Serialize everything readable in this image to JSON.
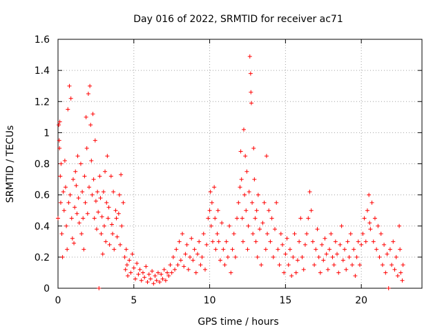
{
  "chart_data": {
    "type": "scatter",
    "title": "Day 016 of 2022, SRMTID for receiver ac71",
    "xlabel": "GPS time / hours",
    "ylabel": "SRMTID / TECUs",
    "xlim": [
      0,
      24
    ],
    "ylim": [
      0,
      1.6
    ],
    "grid": true,
    "marker": "+",
    "color": "#ff0000",
    "xticks": [
      {
        "value": 0,
        "label": "0"
      },
      {
        "value": 5,
        "label": "5"
      },
      {
        "value": 10,
        "label": "10"
      },
      {
        "value": 15,
        "label": "15"
      },
      {
        "value": 20,
        "label": "20"
      }
    ],
    "yticks": [
      {
        "value": 0,
        "label": "0"
      },
      {
        "value": 0.2,
        "label": "0.2"
      },
      {
        "value": 0.4,
        "label": "0.4"
      },
      {
        "value": 0.6,
        "label": "0.6"
      },
      {
        "value": 0.8,
        "label": "0.8"
      },
      {
        "value": 1.0,
        "label": "1"
      },
      {
        "value": 1.2,
        "label": "1.2"
      },
      {
        "value": 1.4,
        "label": "1.4"
      },
      {
        "value": 1.6,
        "label": "1.6"
      }
    ],
    "series": [
      {
        "name": "SRMTID",
        "points": [
          [
            0.0,
            0.45
          ],
          [
            0.05,
            1.05
          ],
          [
            0.08,
            0.95
          ],
          [
            0.1,
            0.9
          ],
          [
            0.12,
            1.07
          ],
          [
            0.15,
            0.72
          ],
          [
            0.18,
            0.55
          ],
          [
            0.2,
            0.8
          ],
          [
            0.25,
            0.35
          ],
          [
            0.3,
            0.2
          ],
          [
            0.35,
            0.62
          ],
          [
            0.4,
            0.5
          ],
          [
            0.45,
            0.82
          ],
          [
            0.5,
            0.65
          ],
          [
            0.55,
            0.4
          ],
          [
            0.6,
            0.25
          ],
          [
            0.65,
            1.15
          ],
          [
            0.7,
            0.55
          ],
          [
            0.75,
            1.3
          ],
          [
            0.8,
            0.6
          ],
          [
            0.85,
            1.22
          ],
          [
            0.9,
            0.45
          ],
          [
            0.95,
            0.32
          ],
          [
            1.0,
            0.7
          ],
          [
            1.05,
            0.29
          ],
          [
            1.1,
            0.52
          ],
          [
            1.15,
            0.75
          ],
          [
            1.2,
            0.66
          ],
          [
            1.25,
            0.48
          ],
          [
            1.3,
            0.85
          ],
          [
            1.35,
            0.58
          ],
          [
            1.4,
            0.42
          ],
          [
            1.5,
            0.8
          ],
          [
            1.55,
            0.35
          ],
          [
            1.6,
            0.62
          ],
          [
            1.65,
            0.45
          ],
          [
            1.7,
            0.25
          ],
          [
            1.75,
            0.72
          ],
          [
            1.8,
            0.55
          ],
          [
            1.85,
            1.1
          ],
          [
            1.9,
            0.9
          ],
          [
            1.95,
            0.48
          ],
          [
            2.0,
            1.25
          ],
          [
            2.05,
            0.65
          ],
          [
            2.1,
            1.3
          ],
          [
            2.15,
            1.05
          ],
          [
            2.2,
            0.82
          ],
          [
            2.25,
            0.6
          ],
          [
            2.3,
            1.12
          ],
          [
            2.35,
            0.7
          ],
          [
            2.4,
            0.45
          ],
          [
            2.45,
            0.95
          ],
          [
            2.5,
            0.56
          ],
          [
            2.55,
            0.38
          ],
          [
            2.6,
            0.62
          ],
          [
            2.65,
            0.49
          ],
          [
            2.7,
            0.0
          ],
          [
            2.75,
            0.72
          ],
          [
            2.8,
            0.58
          ],
          [
            2.85,
            0.35
          ],
          [
            2.9,
            0.46
          ],
          [
            2.95,
            0.22
          ],
          [
            3.0,
            0.62
          ],
          [
            3.05,
            0.4
          ],
          [
            3.1,
            0.75
          ],
          [
            3.15,
            0.3
          ],
          [
            3.2,
            0.55
          ],
          [
            3.25,
            0.85
          ],
          [
            3.3,
            0.45
          ],
          [
            3.35,
            0.52
          ],
          [
            3.4,
            0.28
          ],
          [
            3.5,
            0.72
          ],
          [
            3.55,
            0.41
          ],
          [
            3.6,
            0.35
          ],
          [
            3.65,
            0.62
          ],
          [
            3.7,
            0.25
          ],
          [
            3.8,
            0.5
          ],
          [
            3.85,
            0.45
          ],
          [
            3.9,
            0.33
          ],
          [
            4.0,
            0.48
          ],
          [
            4.05,
            0.6
          ],
          [
            4.1,
            0.28
          ],
          [
            4.15,
            0.73
          ],
          [
            4.2,
            0.4
          ],
          [
            4.3,
            0.55
          ],
          [
            4.4,
            0.2
          ],
          [
            4.45,
            0.12
          ],
          [
            4.5,
            0.25
          ],
          [
            4.55,
            0.15
          ],
          [
            4.6,
            0.08
          ],
          [
            4.7,
            0.18
          ],
          [
            4.8,
            0.1
          ],
          [
            4.9,
            0.22
          ],
          [
            5.0,
            0.13
          ],
          [
            5.1,
            0.06
          ],
          [
            5.2,
            0.16
          ],
          [
            5.3,
            0.09
          ],
          [
            5.4,
            0.12
          ],
          [
            5.5,
            0.05
          ],
          [
            5.6,
            0.1
          ],
          [
            5.7,
            0.07
          ],
          [
            5.8,
            0.14
          ],
          [
            5.9,
            0.04
          ],
          [
            6.0,
            0.09
          ],
          [
            6.1,
            0.06
          ],
          [
            6.2,
            0.11
          ],
          [
            6.3,
            0.03
          ],
          [
            6.4,
            0.08
          ],
          [
            6.5,
            0.05
          ],
          [
            6.6,
            0.1
          ],
          [
            6.7,
            0.04
          ],
          [
            6.8,
            0.09
          ],
          [
            6.9,
            0.06
          ],
          [
            7.0,
            0.12
          ],
          [
            7.1,
            0.05
          ],
          [
            7.2,
            0.1
          ],
          [
            7.3,
            0.08
          ],
          [
            7.4,
            0.15
          ],
          [
            7.5,
            0.1
          ],
          [
            7.6,
            0.2
          ],
          [
            7.7,
            0.12
          ],
          [
            7.8,
            0.25
          ],
          [
            7.9,
            0.15
          ],
          [
            8.0,
            0.3
          ],
          [
            8.1,
            0.18
          ],
          [
            8.2,
            0.35
          ],
          [
            8.3,
            0.14
          ],
          [
            8.4,
            0.22
          ],
          [
            8.5,
            0.28
          ],
          [
            8.6,
            0.12
          ],
          [
            8.7,
            0.2
          ],
          [
            8.8,
            0.32
          ],
          [
            8.9,
            0.18
          ],
          [
            9.0,
            0.25
          ],
          [
            9.1,
            0.1
          ],
          [
            9.2,
            0.22
          ],
          [
            9.3,
            0.3
          ],
          [
            9.4,
            0.15
          ],
          [
            9.5,
            0.2
          ],
          [
            9.6,
            0.35
          ],
          [
            9.7,
            0.12
          ],
          [
            9.8,
            0.28
          ],
          [
            9.9,
            0.45
          ],
          [
            10.0,
            0.5
          ],
          [
            10.05,
            0.62
          ],
          [
            10.1,
            0.4
          ],
          [
            10.15,
            0.55
          ],
          [
            10.2,
            0.3
          ],
          [
            10.3,
            0.65
          ],
          [
            10.35,
            0.45
          ],
          [
            10.4,
            0.25
          ],
          [
            10.5,
            0.35
          ],
          [
            10.55,
            0.5
          ],
          [
            10.6,
            0.3
          ],
          [
            10.7,
            0.18
          ],
          [
            10.8,
            0.42
          ],
          [
            10.9,
            0.25
          ],
          [
            11.0,
            0.15
          ],
          [
            11.1,
            0.3
          ],
          [
            11.2,
            0.2
          ],
          [
            11.3,
            0.4
          ],
          [
            11.4,
            0.1
          ],
          [
            11.5,
            0.25
          ],
          [
            11.6,
            0.35
          ],
          [
            11.7,
            0.2
          ],
          [
            11.8,
            0.45
          ],
          [
            11.9,
            0.55
          ],
          [
            12.0,
            0.65
          ],
          [
            12.05,
            0.88
          ],
          [
            12.1,
            0.7
          ],
          [
            12.15,
            0.45
          ],
          [
            12.2,
            0.3
          ],
          [
            12.25,
            1.02
          ],
          [
            12.3,
            0.6
          ],
          [
            12.35,
            0.85
          ],
          [
            12.4,
            0.5
          ],
          [
            12.45,
            0.75
          ],
          [
            12.5,
            0.25
          ],
          [
            12.55,
            0.4
          ],
          [
            12.6,
            0.62
          ],
          [
            12.65,
            1.49
          ],
          [
            12.7,
            1.38
          ],
          [
            12.72,
            1.26
          ],
          [
            12.75,
            1.19
          ],
          [
            12.8,
            0.55
          ],
          [
            12.85,
            0.35
          ],
          [
            12.9,
            0.9
          ],
          [
            12.95,
            0.7
          ],
          [
            13.0,
            0.45
          ],
          [
            13.05,
            0.3
          ],
          [
            13.1,
            0.5
          ],
          [
            13.15,
            0.2
          ],
          [
            13.2,
            0.6
          ],
          [
            13.3,
            0.38
          ],
          [
            13.4,
            0.15
          ],
          [
            13.5,
            0.42
          ],
          [
            13.6,
            0.55
          ],
          [
            13.7,
            0.25
          ],
          [
            13.75,
            0.85
          ],
          [
            13.8,
            0.35
          ],
          [
            13.9,
            0.5
          ],
          [
            14.0,
            0.3
          ],
          [
            14.1,
            0.45
          ],
          [
            14.2,
            0.2
          ],
          [
            14.3,
            0.38
          ],
          [
            14.4,
            0.55
          ],
          [
            14.5,
            0.25
          ],
          [
            14.6,
            0.15
          ],
          [
            14.7,
            0.35
          ],
          [
            14.8,
            0.28
          ],
          [
            14.9,
            0.1
          ],
          [
            15.0,
            0.22
          ],
          [
            15.1,
            0.32
          ],
          [
            15.2,
            0.15
          ],
          [
            15.3,
            0.25
          ],
          [
            15.4,
            0.08
          ],
          [
            15.5,
            0.2
          ],
          [
            15.6,
            0.35
          ],
          [
            15.7,
            0.1
          ],
          [
            15.8,
            0.18
          ],
          [
            15.9,
            0.3
          ],
          [
            16.0,
            0.45
          ],
          [
            16.1,
            0.2
          ],
          [
            16.2,
            0.12
          ],
          [
            16.3,
            0.28
          ],
          [
            16.4,
            0.35
          ],
          [
            16.5,
            0.45
          ],
          [
            16.6,
            0.62
          ],
          [
            16.7,
            0.5
          ],
          [
            16.8,
            0.3
          ],
          [
            16.9,
            0.15
          ],
          [
            17.0,
            0.25
          ],
          [
            17.1,
            0.38
          ],
          [
            17.2,
            0.2
          ],
          [
            17.3,
            0.1
          ],
          [
            17.4,
            0.28
          ],
          [
            17.5,
            0.18
          ],
          [
            17.6,
            0.32
          ],
          [
            17.7,
            0.22
          ],
          [
            17.8,
            0.12
          ],
          [
            17.9,
            0.25
          ],
          [
            18.0,
            0.35
          ],
          [
            18.1,
            0.2
          ],
          [
            18.2,
            0.15
          ],
          [
            18.3,
            0.3
          ],
          [
            18.4,
            0.22
          ],
          [
            18.5,
            0.1
          ],
          [
            18.6,
            0.28
          ],
          [
            18.7,
            0.4
          ],
          [
            18.8,
            0.18
          ],
          [
            18.9,
            0.25
          ],
          [
            19.0,
            0.12
          ],
          [
            19.1,
            0.3
          ],
          [
            19.2,
            0.2
          ],
          [
            19.3,
            0.35
          ],
          [
            19.4,
            0.15
          ],
          [
            19.5,
            0.25
          ],
          [
            19.6,
            0.08
          ],
          [
            19.7,
            0.2
          ],
          [
            19.8,
            0.3
          ],
          [
            19.9,
            0.15
          ],
          [
            20.0,
            0.28
          ],
          [
            20.1,
            0.35
          ],
          [
            20.2,
            0.45
          ],
          [
            20.3,
            0.3
          ],
          [
            20.4,
            0.5
          ],
          [
            20.5,
            0.6
          ],
          [
            20.55,
            0.42
          ],
          [
            20.6,
            0.38
          ],
          [
            20.7,
            0.55
          ],
          [
            20.8,
            0.3
          ],
          [
            20.9,
            0.45
          ],
          [
            21.0,
            0.25
          ],
          [
            21.1,
            0.4
          ],
          [
            21.2,
            0.2
          ],
          [
            21.3,
            0.35
          ],
          [
            21.4,
            0.15
          ],
          [
            21.5,
            0.28
          ],
          [
            21.6,
            0.1
          ],
          [
            21.7,
            0.22
          ],
          [
            21.8,
            0.0
          ],
          [
            21.9,
            0.25
          ],
          [
            22.0,
            0.15
          ],
          [
            22.1,
            0.3
          ],
          [
            22.2,
            0.12
          ],
          [
            22.3,
            0.2
          ],
          [
            22.4,
            0.08
          ],
          [
            22.5,
            0.4
          ],
          [
            22.55,
            0.25
          ],
          [
            22.6,
            0.1
          ],
          [
            22.7,
            0.05
          ],
          [
            22.75,
            0.15
          ]
        ]
      }
    ]
  }
}
